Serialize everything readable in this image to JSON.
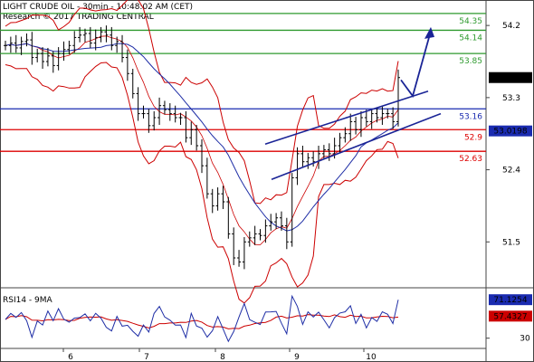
{
  "header": {
    "line1": "LIGHT CRUDE OIL - 30min - 10:48:02 AM (CET)",
    "line2": "Research © 2017 TRADING CENTRAL"
  },
  "rsi_label": "RSI14 - 9MA",
  "colors": {
    "price": "#000000",
    "bollinger": "#cc0000",
    "moving_average": "#1f2ea6",
    "support": "#dd0000",
    "resistance": "#2e9a2e",
    "pivot": "#1a2bb0",
    "channel": "#1a2496",
    "arrow": "#1a2496",
    "rsi": "#1f2ea6",
    "rsi_ma": "#cc0000",
    "tag_last": "#000000",
    "tag_ma": "#1a2bb0",
    "tag_rsi": "#1a2bb0",
    "tag_rsi_ma": "#cc0000"
  },
  "chart_data": [
    {
      "type": "line",
      "title": "LIGHT CRUDE OIL - 30min",
      "price_range": [
        50.95,
        54.45
      ],
      "x_ticks": [
        "6",
        "7",
        "8",
        "9",
        "10"
      ],
      "y_ticks": [
        "54.2",
        "53.3",
        "52.4",
        "51.5"
      ],
      "grid": false,
      "levels": [
        {
          "value": 54.35,
          "label": "54.35",
          "kind": "resistance"
        },
        {
          "value": 54.14,
          "label": "54.14",
          "kind": "resistance"
        },
        {
          "value": 53.85,
          "label": "53.85",
          "kind": "resistance"
        },
        {
          "value": 53.16,
          "label": "53.16",
          "kind": "pivot"
        },
        {
          "value": 52.9,
          "label": "52.9",
          "kind": "support"
        },
        {
          "value": 52.63,
          "label": "52.63",
          "kind": "support"
        }
      ],
      "last_price": {
        "value": 53.55,
        "label": "53.55"
      },
      "ma_value": {
        "value": 53.0198,
        "label": "53.0198"
      },
      "series_close": [
        53.95,
        53.98,
        53.92,
        54.0,
        54.02,
        53.8,
        53.85,
        53.75,
        53.82,
        53.7,
        53.85,
        53.9,
        53.95,
        54.05,
        54.08,
        54.1,
        53.98,
        54.05,
        54.12,
        54.08,
        53.95,
        54.0,
        53.8,
        53.6,
        53.35,
        53.1,
        53.1,
        52.95,
        53.05,
        53.2,
        53.15,
        53.1,
        53.05,
        53.05,
        52.8,
        52.9,
        52.7,
        52.45,
        52.1,
        51.95,
        52.1,
        52.0,
        51.6,
        51.3,
        51.25,
        51.5,
        51.55,
        51.6,
        51.58,
        51.7,
        51.75,
        51.8,
        51.7,
        51.5,
        52.3,
        52.6,
        52.5,
        52.55,
        52.5,
        52.6,
        52.65,
        52.6,
        52.7,
        52.8,
        52.85,
        53.0,
        52.9,
        53.05,
        53.0,
        53.1,
        53.05,
        53.1,
        53.1,
        53.0,
        53.55
      ]
    },
    {
      "type": "line",
      "title": "RSI14 - 9MA",
      "y_range": [
        20,
        80
      ],
      "y_ticks": [
        "30"
      ],
      "rsi_value": {
        "value": 71.1254,
        "label": "71.1254"
      },
      "rsi_ma_value": {
        "value": 57.4327,
        "label": "57.4327"
      }
    }
  ]
}
